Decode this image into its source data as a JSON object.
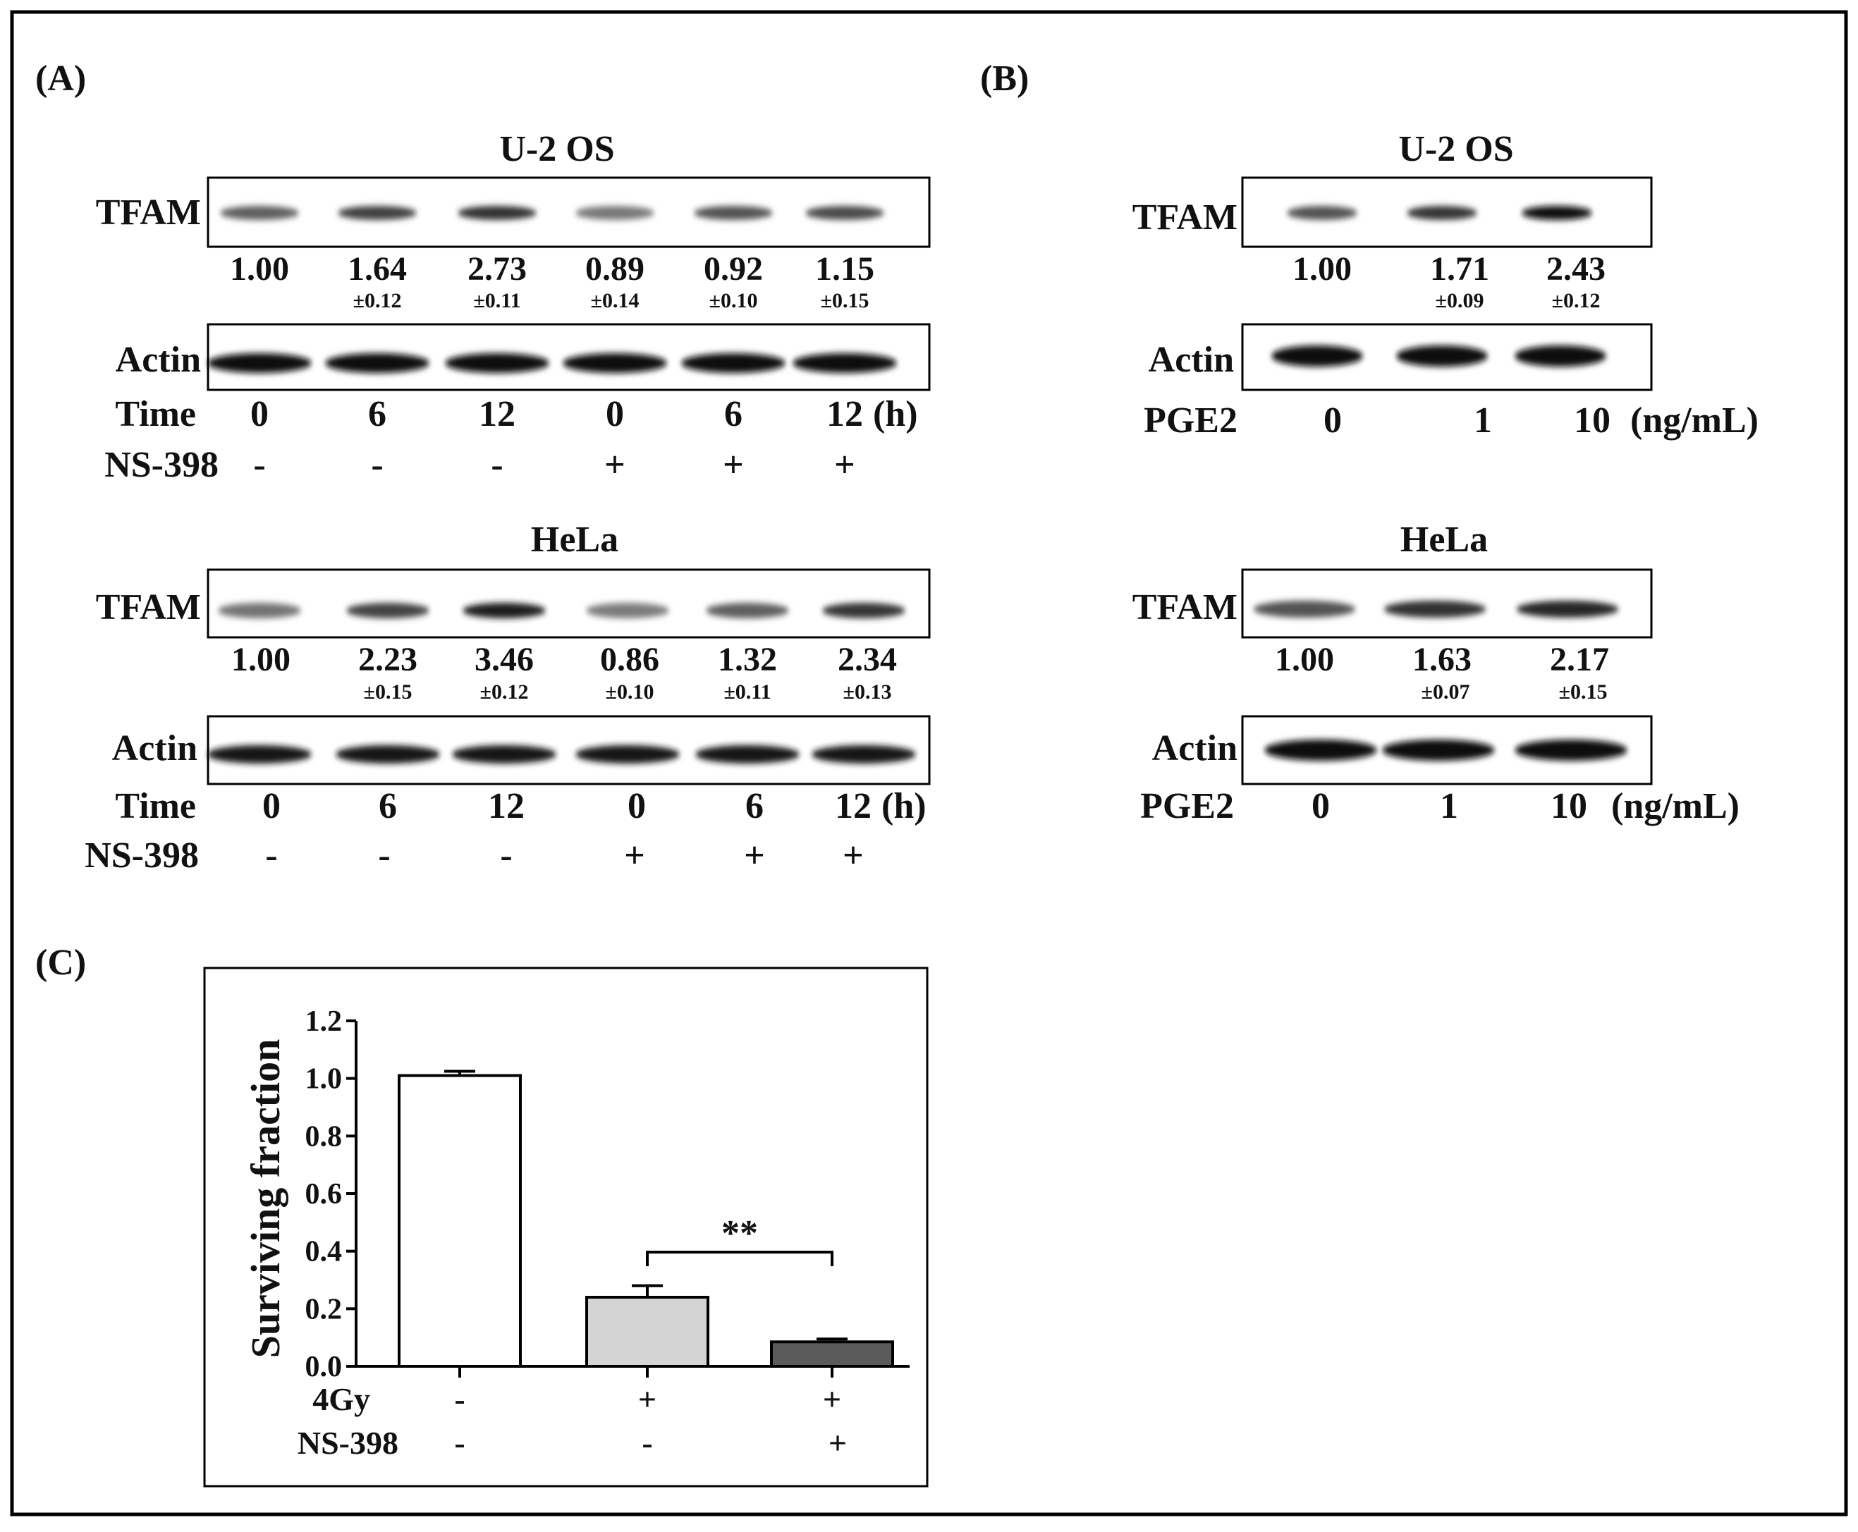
{
  "panels": {
    "A": {
      "label": "(A)",
      "blots": [
        {
          "title": "U-2 OS",
          "tfam_label": "TFAM",
          "actin_label": "Actin",
          "tfam_intensity": [
            0.55,
            0.72,
            0.8,
            0.42,
            0.62,
            0.66
          ],
          "actin_intensity": [
            0.98,
            0.98,
            0.98,
            0.98,
            0.98,
            0.98
          ],
          "ratios": [
            "1.00",
            "1.64",
            "2.73",
            "0.89",
            "0.92",
            "1.15"
          ],
          "errors": [
            "",
            "±0.12",
            "±0.11",
            "±0.14",
            "±0.10",
            "±0.15"
          ],
          "row1_label": "Time",
          "row1_values": [
            "0",
            "6",
            "12",
            "0",
            "6",
            "12"
          ],
          "row1_unit": "(h)",
          "row2_label": "NS-398",
          "row2_values": [
            "-",
            "-",
            "-",
            "+",
            "+",
            "+"
          ]
        },
        {
          "title": "HeLa",
          "tfam_label": "TFAM",
          "actin_label": "Actin",
          "tfam_intensity": [
            0.45,
            0.7,
            0.9,
            0.4,
            0.55,
            0.78
          ],
          "actin_intensity": [
            0.92,
            0.94,
            0.92,
            0.92,
            0.92,
            0.92
          ],
          "ratios": [
            "1.00",
            "2.23",
            "3.46",
            "0.86",
            "1.32",
            "2.34"
          ],
          "errors": [
            "",
            "±0.15",
            "±0.12",
            "±0.10",
            "±0.11",
            "±0.13"
          ],
          "row1_label": "Time",
          "row1_values": [
            "0",
            "6",
            "12",
            "0",
            "6",
            "12"
          ],
          "row1_unit": "(h)",
          "row2_label": "NS-398",
          "row2_values": [
            "-",
            "-",
            "-",
            "+",
            "+",
            "+"
          ]
        }
      ]
    },
    "B": {
      "label": "(B)",
      "blots": [
        {
          "title": "U-2 OS",
          "tfam_label": "TFAM",
          "actin_label": "Actin",
          "tfam_intensity": [
            0.62,
            0.78,
            0.97
          ],
          "actin_intensity": [
            0.98,
            0.98,
            0.98
          ],
          "ratios": [
            "1.00",
            "1.71",
            "2.43"
          ],
          "errors": [
            "",
            "±0.09",
            "±0.12"
          ],
          "row1_label": "PGE2",
          "row1_values": [
            "0",
            "1",
            "10"
          ],
          "row1_unit": "(ng/mL)"
        },
        {
          "title": "HeLa",
          "tfam_label": "TFAM",
          "actin_label": "Actin",
          "tfam_intensity": [
            0.62,
            0.8,
            0.86
          ],
          "actin_intensity": [
            0.98,
            0.98,
            0.98
          ],
          "ratios": [
            "1.00",
            "1.63",
            "2.17"
          ],
          "errors": [
            "",
            "±0.07",
            "±0.15"
          ],
          "row1_label": "PGE2",
          "row1_values": [
            "0",
            "1",
            "10"
          ],
          "row1_unit": "(ng/mL)"
        }
      ]
    },
    "C": {
      "label": "(C)"
    }
  },
  "chart_data": {
    "type": "bar",
    "title": "",
    "xlabel": "",
    "ylabel": "Surviving fraction",
    "ylim": [
      0,
      1.2
    ],
    "yticks": [
      "0.0",
      "0.2",
      "0.4",
      "0.6",
      "0.8",
      "1.0",
      "1.2"
    ],
    "values": [
      1.01,
      0.24,
      0.085
    ],
    "errors": [
      0.015,
      0.04,
      0.01
    ],
    "bar_colors": [
      "#ffffff",
      "#d4d4d4",
      "#5a5a5a"
    ],
    "condition_rows": [
      {
        "label": "4Gy",
        "values": [
          "-",
          "+",
          "+"
        ]
      },
      {
        "label": "NS-398",
        "values": [
          "-",
          "-",
          "+"
        ]
      }
    ],
    "significance": {
      "between": [
        1,
        2
      ],
      "text": "**"
    },
    "grid": false
  }
}
